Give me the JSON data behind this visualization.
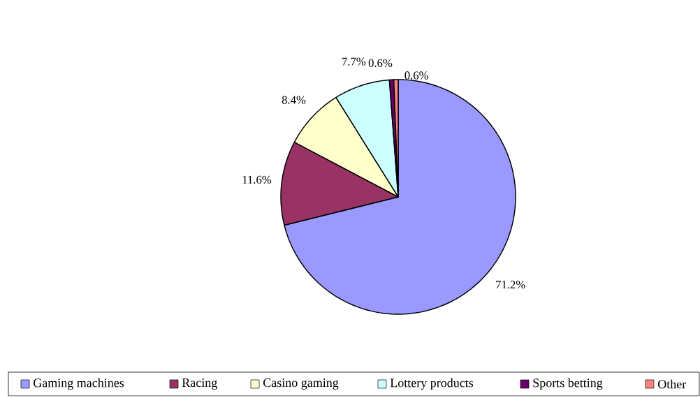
{
  "chart_data": {
    "type": "pie",
    "categories": [
      "Gaming machines",
      "Racing",
      "Casino gaming",
      "Lottery products",
      "Sports betting",
      "Other"
    ],
    "values": [
      71.2,
      11.6,
      8.4,
      7.7,
      0.6,
      0.6
    ],
    "value_labels": [
      "71.2%",
      "11.6%",
      "8.4%",
      "7.7%",
      "0.6%",
      "0.6%"
    ],
    "colors": [
      "#9999ff",
      "#993366",
      "#ffffcc",
      "#ccffff",
      "#660066",
      "#ff8080"
    ],
    "legend": "bottom"
  }
}
